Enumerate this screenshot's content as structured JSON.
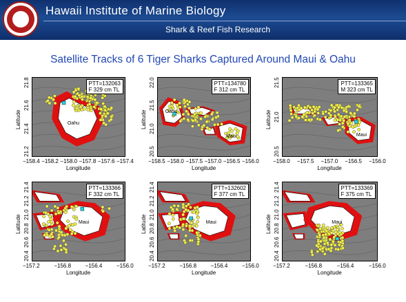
{
  "header": {
    "title": "Hawaii Institute of Marine Biology",
    "subtitle": "Shark & Reef Fish Research"
  },
  "title": "Satellite Tracks of 6 Tiger Sharks Captured Around Maui & Oahu",
  "panels": [
    {
      "legend": "PTT=132063\nF 329 cm TL",
      "xlabel": "Longitude",
      "ylabel": "Latitude",
      "xticks": [
        "−158.4",
        "−158.2",
        "−158.0",
        "−157.8",
        "−157.6",
        "−157.4"
      ],
      "yticks": [
        "21.2",
        "21.4",
        "21.6",
        "21.8"
      ],
      "island_labels": [
        "Oahu"
      ]
    },
    {
      "legend": "PTT=134780\nF 312 cm TL",
      "xlabel": "Longitude",
      "ylabel": "Latitude",
      "xticks": [
        "−158.5",
        "−158.0",
        "−157.5",
        "−157.0",
        "−156.5",
        "−156.0"
      ],
      "yticks": [
        "20.5",
        "21.0",
        "21.5",
        "22.0"
      ],
      "island_labels": [
        "Oahu",
        "Maui"
      ]
    },
    {
      "legend": "PTT=133365\nM 323 cm TL",
      "xlabel": "Longitude",
      "ylabel": "Latitude",
      "xticks": [
        "−158.0",
        "−157.5",
        "−157.0",
        "−156.5",
        "−156.0"
      ],
      "yticks": [
        "20.5",
        "21.0",
        "21.5"
      ],
      "island_labels": [
        "Maui"
      ]
    },
    {
      "legend": "PTT=133366\nF 332 cm TL",
      "xlabel": "Longitude",
      "ylabel": "Latitude",
      "xticks": [
        "−157.2",
        "−156.8",
        "−156.4",
        "−156.0"
      ],
      "yticks": [
        "20.4",
        "20.6",
        "20.8",
        "21.0",
        "21.2",
        "21.4"
      ],
      "island_labels": [
        "Maui"
      ]
    },
    {
      "legend": "PTT=132602\nF 377 cm TL",
      "xlabel": "Longitude",
      "ylabel": "Latitude",
      "xticks": [
        "−157.2",
        "−156.8",
        "−156.4",
        "−156.0"
      ],
      "yticks": [
        "20.4",
        "20.6",
        "20.8",
        "21.0",
        "21.2",
        "21.4"
      ],
      "island_labels": [
        "Maui"
      ]
    },
    {
      "legend": "PTT=133369\nF 375 cm TL",
      "xlabel": "Longitude",
      "ylabel": "Latitude",
      "xticks": [
        "−157.2",
        "−156.8",
        "−156.4",
        "−156.0"
      ],
      "yticks": [
        "20.4",
        "20.6",
        "20.8",
        "21.0",
        "21.2",
        "21.4"
      ],
      "island_labels": [
        "Maui"
      ]
    }
  ],
  "colors": {
    "header_bg": "#1c4b92",
    "title": "#2147b5",
    "ocean": "#7e7e7e",
    "shelf": "#e01010",
    "land": "#ffffff",
    "track_point": "#f3f04a",
    "release_point": "#22d0e0"
  }
}
